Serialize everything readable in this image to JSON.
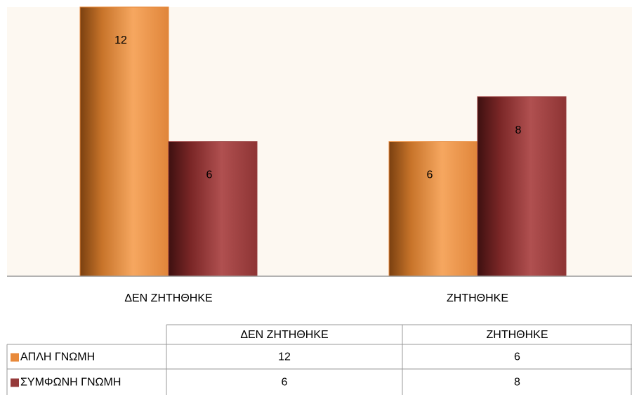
{
  "chart_data": {
    "type": "bar",
    "categories": [
      "ΔΕΝ ΖΗΤΗΘΗΚΕ",
      "ΖΗΤΗΘΗΚΕ"
    ],
    "series": [
      {
        "name": "ΑΠΛΗ ΓΝΩΜΗ",
        "color": "#e8893a",
        "values": [
          12,
          6
        ]
      },
      {
        "name": "ΣΥΜΦΩΝΗ ΓΝΩΜΗ",
        "color": "#953a3a",
        "values": [
          6,
          8
        ]
      }
    ],
    "ylim": [
      0,
      12
    ]
  }
}
